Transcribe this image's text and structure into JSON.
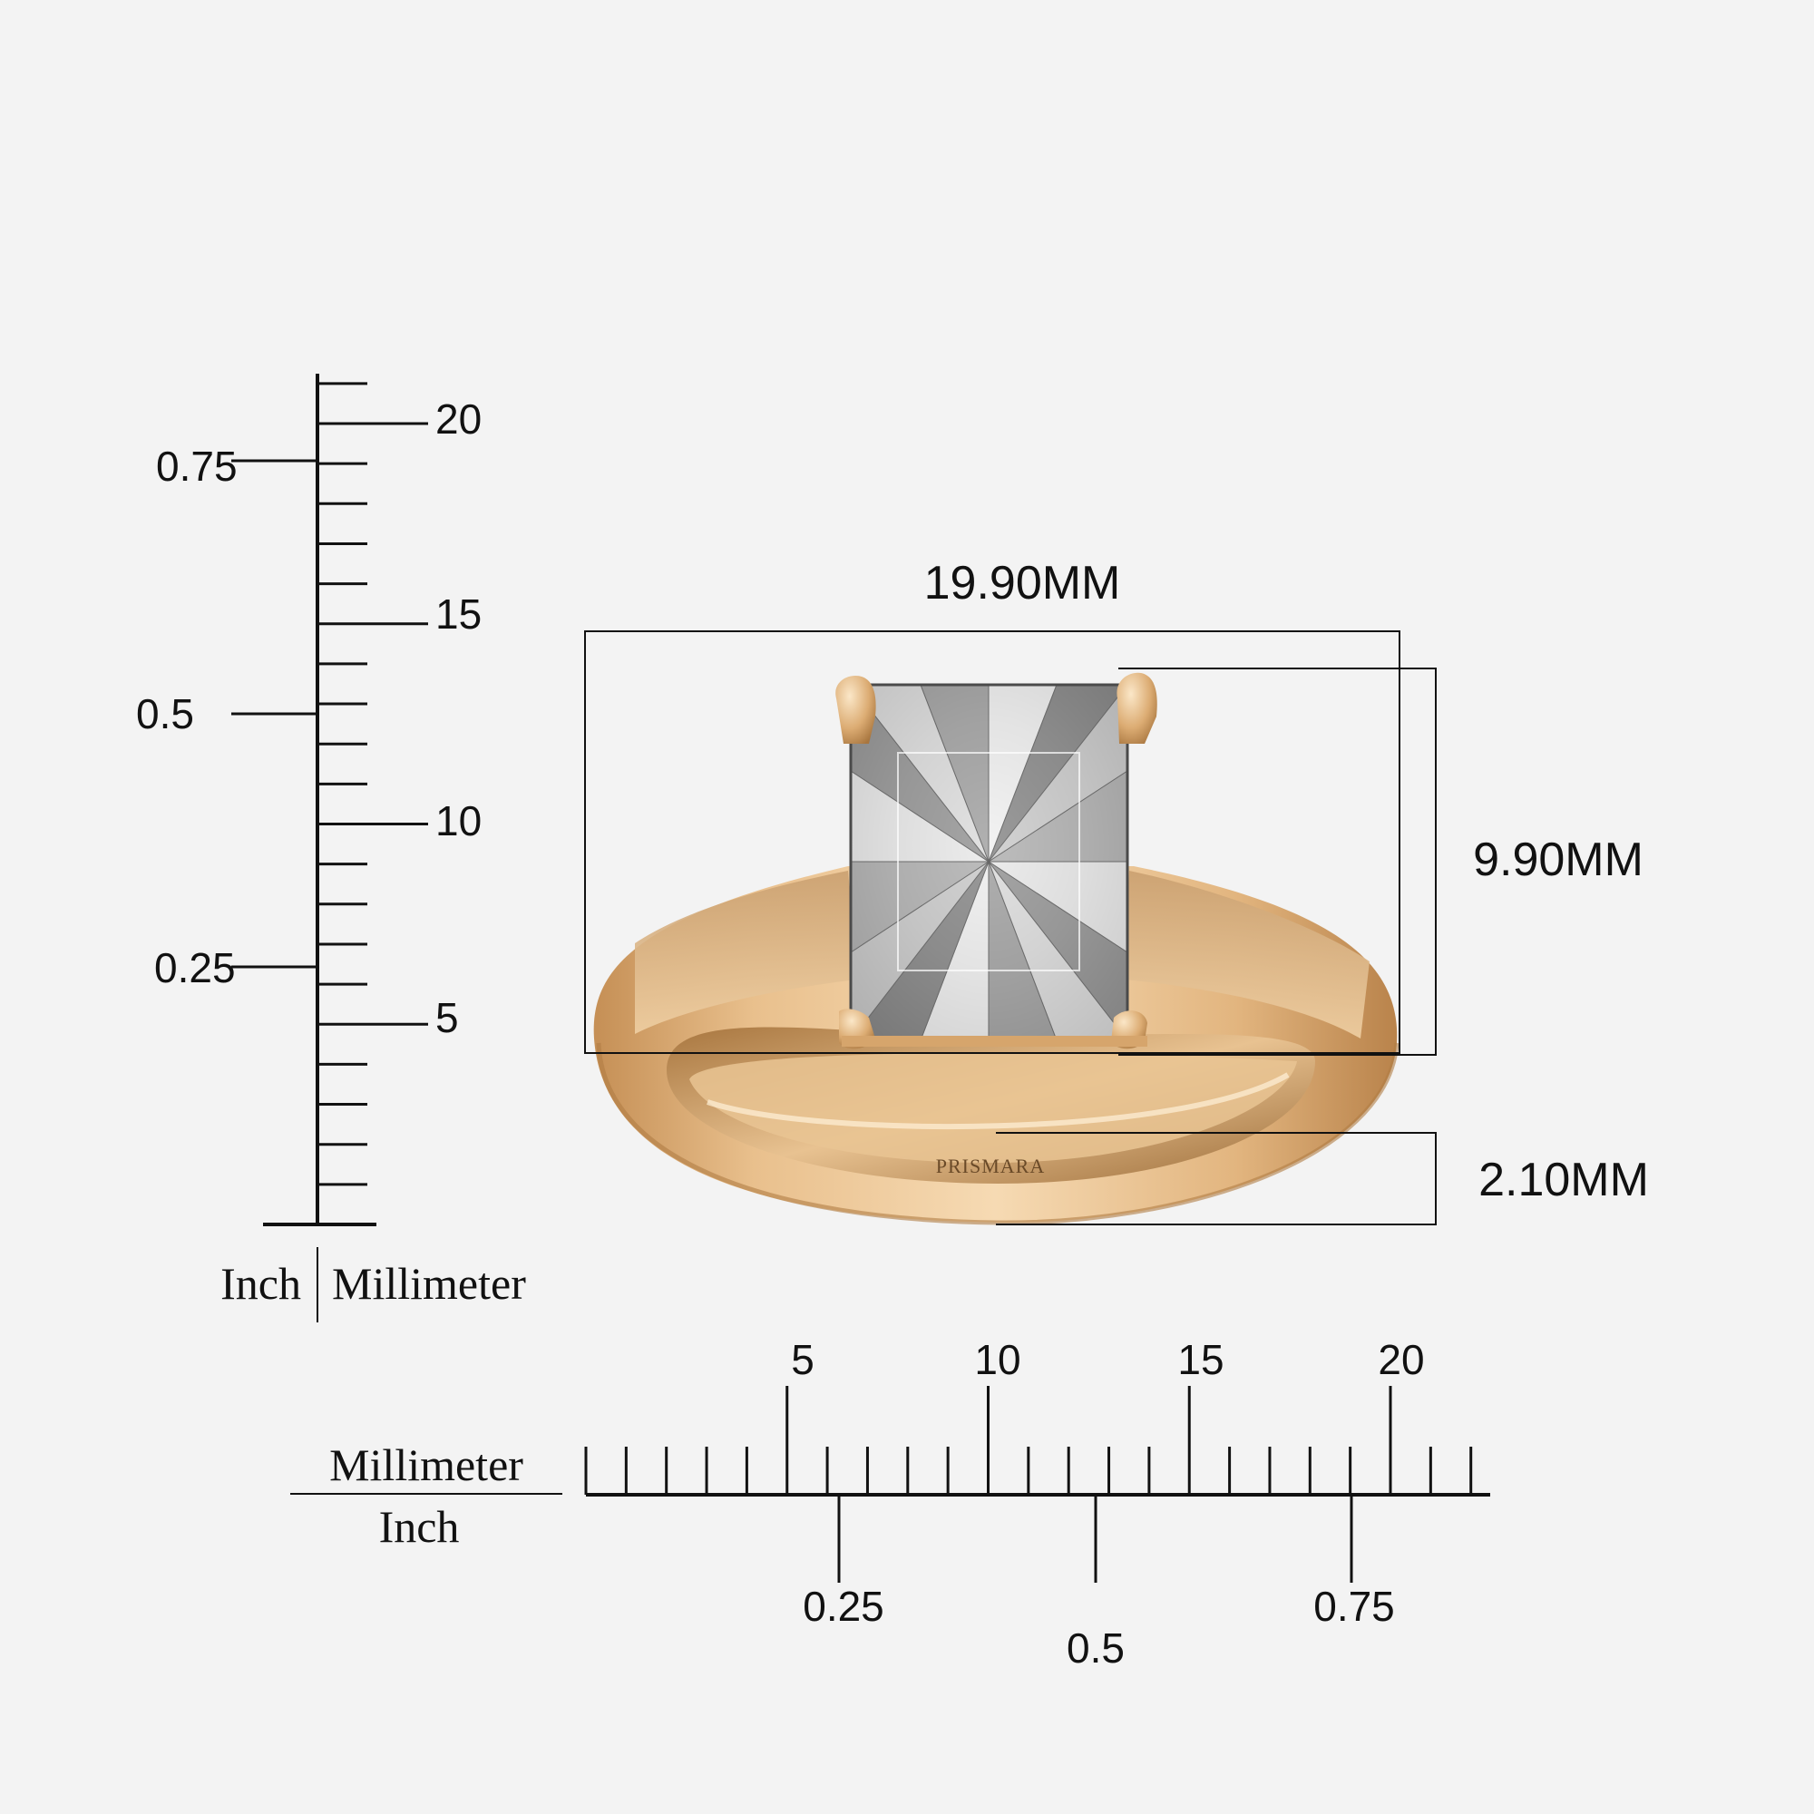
{
  "dimensions": {
    "width": "19.90MM",
    "height": "9.90MM",
    "band_width": "2.10MM"
  },
  "brand": "PRISMARA",
  "vertical_ruler": {
    "left_unit": "Inch",
    "right_unit": "Millimeter",
    "mm_labels": [
      "20",
      "15",
      "10",
      "5"
    ],
    "inch_labels": [
      "0.75",
      "0.5",
      "0.25"
    ]
  },
  "horizontal_ruler": {
    "top_unit": "Millimeter",
    "bottom_unit": "Inch",
    "mm_labels": [
      "5",
      "10",
      "15",
      "20"
    ],
    "inch_labels": [
      "0.25",
      "0.5",
      "0.75"
    ]
  },
  "colors": {
    "gold_light": "#f2cfa2",
    "gold_mid": "#d9a870",
    "gold_dark": "#a8763f",
    "ink": "#111111",
    "background": "#f3f3f3"
  }
}
